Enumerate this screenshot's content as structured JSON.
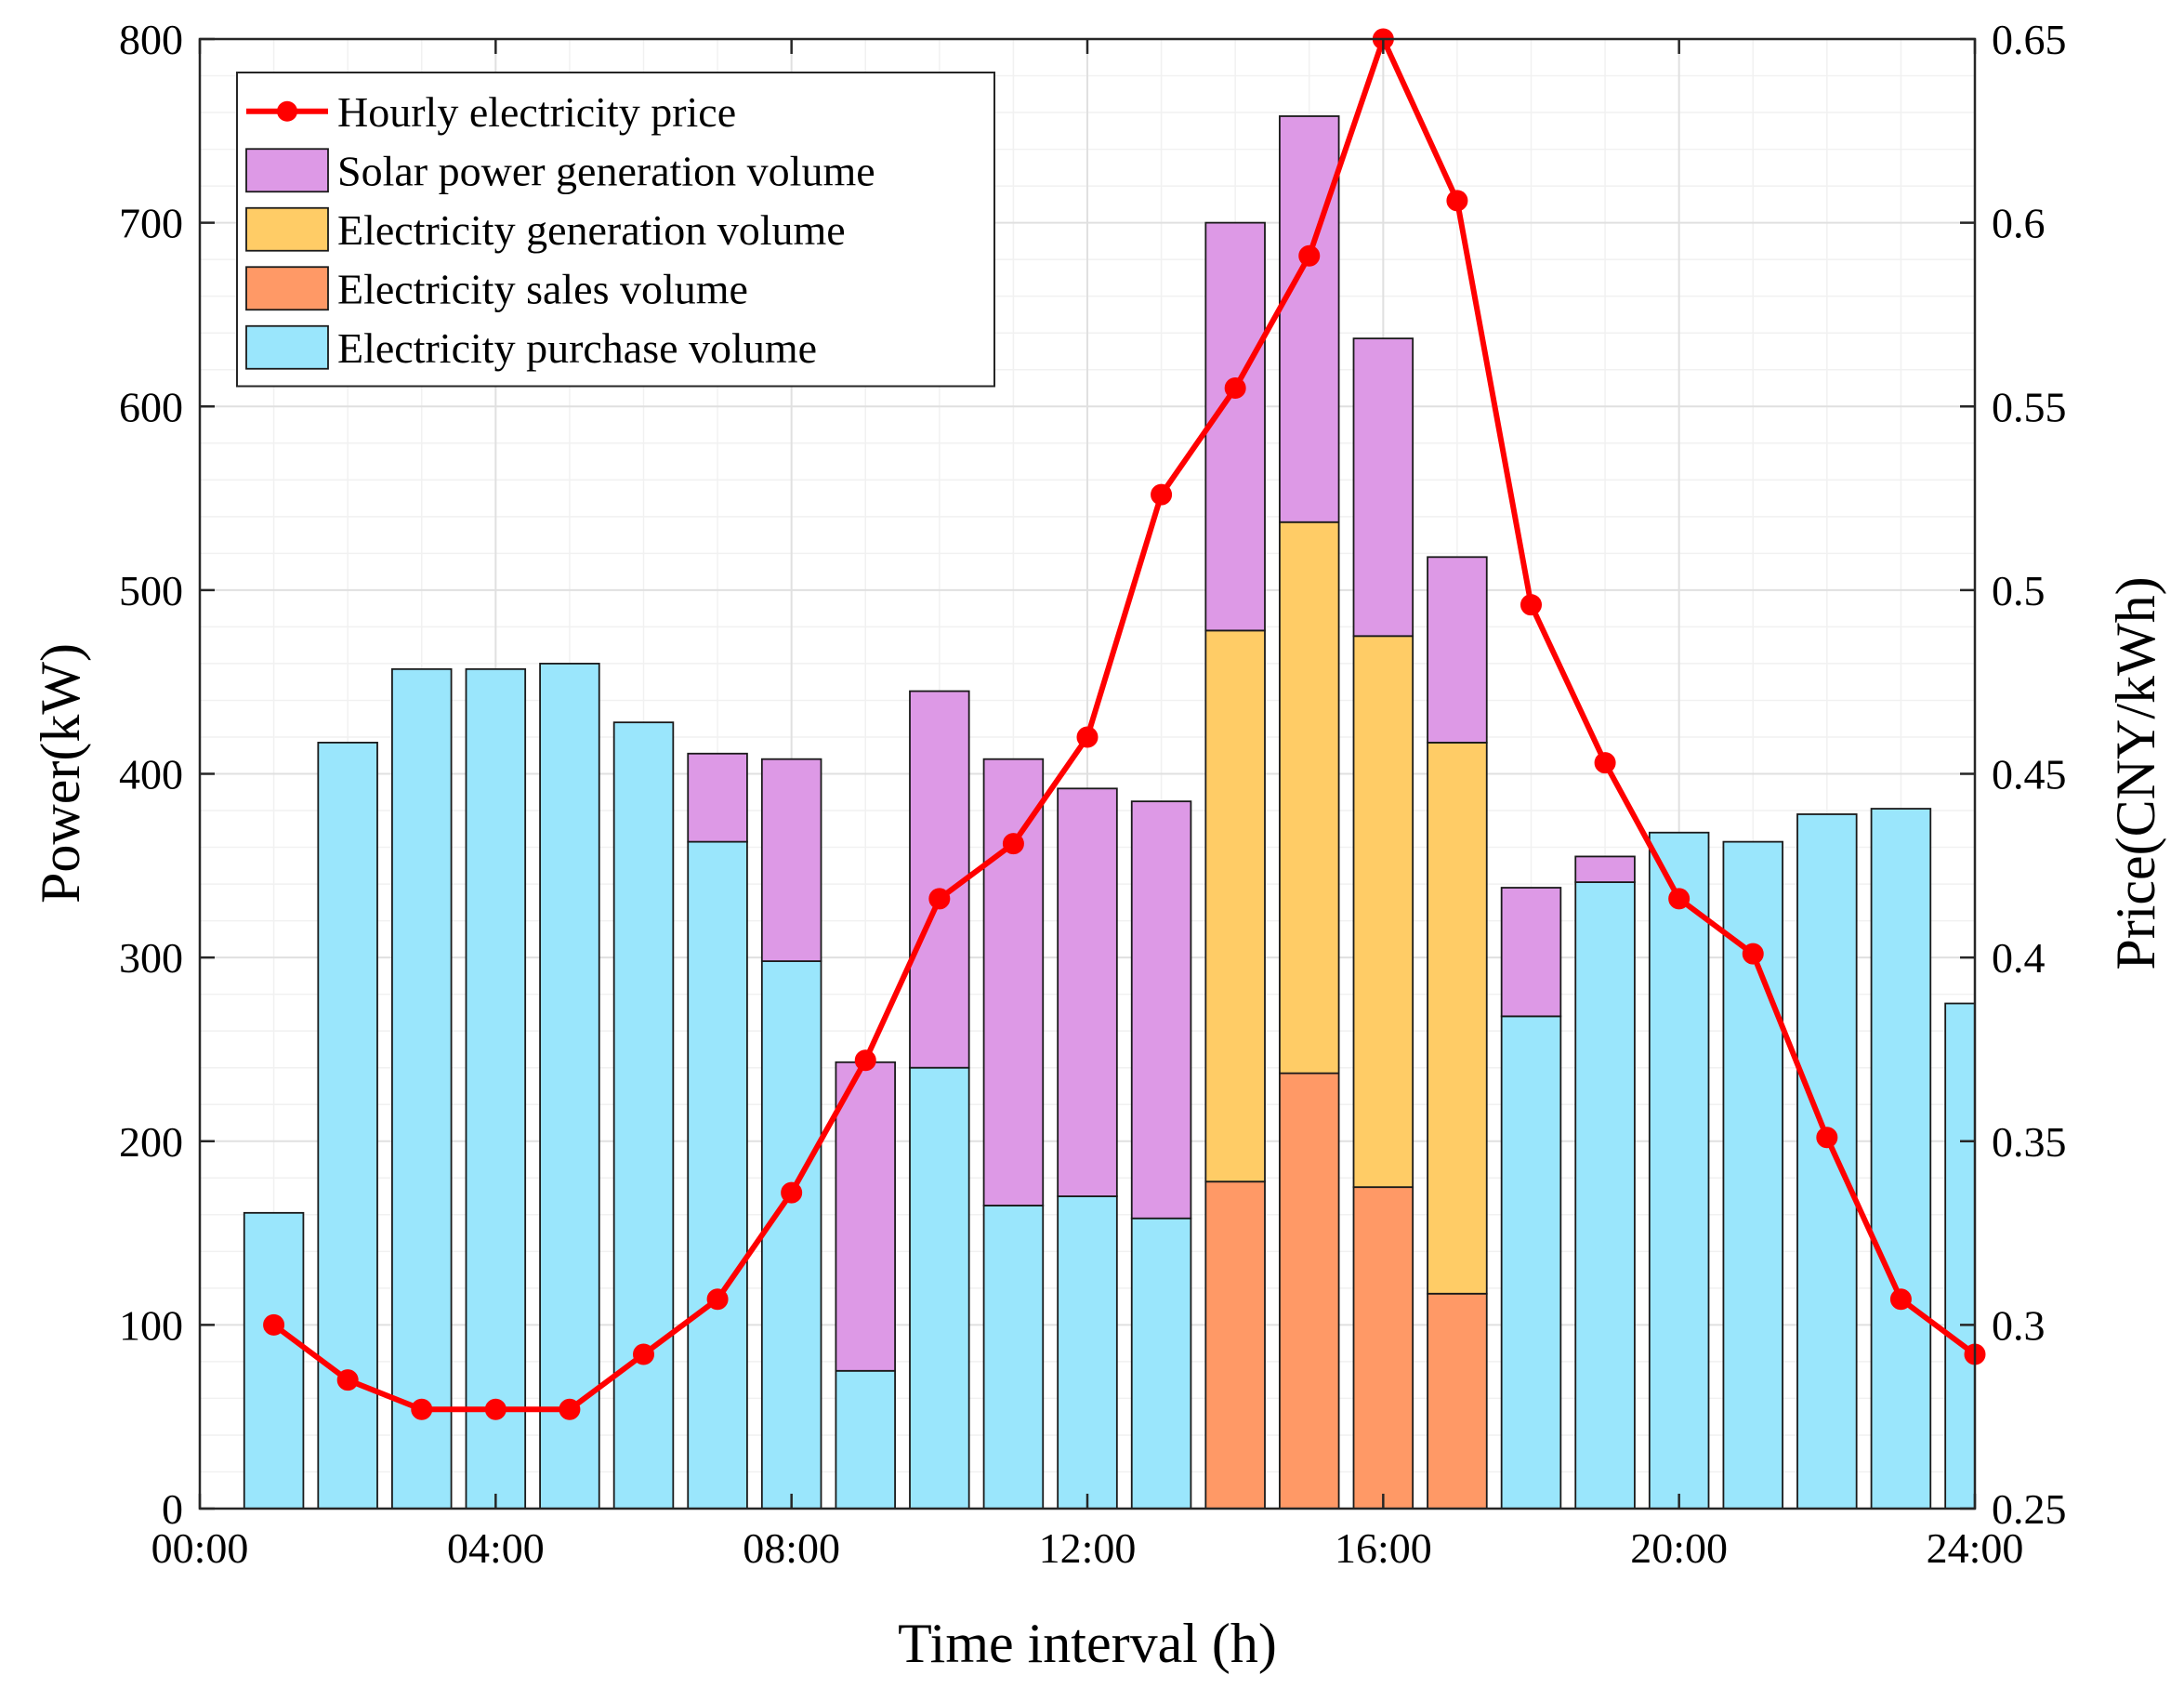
{
  "chart_data": {
    "type": "bar",
    "stacked": true,
    "xlabel": "Time interval (h)",
    "ylabel_left": "Power(kW)",
    "ylabel_right": "Price(CNY/kWh)",
    "x": [
      1,
      2,
      3,
      4,
      5,
      6,
      7,
      8,
      9,
      10,
      11,
      12,
      13,
      14,
      15,
      16,
      17,
      18,
      19,
      20,
      21,
      22,
      23,
      24
    ],
    "xlim": [
      0,
      24
    ],
    "xticks": [
      0,
      4,
      8,
      12,
      16,
      20,
      24
    ],
    "xtick_labels": [
      "00:00",
      "04:00",
      "08:00",
      "12:00",
      "16:00",
      "20:00",
      "24:00"
    ],
    "ylim_left": [
      0,
      800
    ],
    "yticks_left": [
      0,
      100,
      200,
      300,
      400,
      500,
      600,
      700,
      800
    ],
    "ytick_labels_left": [
      "0",
      "100",
      "200",
      "300",
      "400",
      "500",
      "600",
      "700",
      "800"
    ],
    "ylim_right": [
      0.25,
      0.65
    ],
    "yticks_right": [
      0.25,
      0.3,
      0.35,
      0.4,
      0.45,
      0.5,
      0.55,
      0.6,
      0.65
    ],
    "ytick_labels_right": [
      "0.25",
      "0.3",
      "0.35",
      "0.4",
      "0.45",
      "0.5",
      "0.55",
      "0.6",
      "0.65"
    ],
    "grid": true,
    "legend_position": "top-left",
    "series": [
      {
        "name": "Electricity purchase volume",
        "kind": "bar",
        "color": "#9AE6FC",
        "values": [
          161,
          417,
          457,
          457,
          460,
          428,
          363,
          298,
          75,
          240,
          165,
          170,
          158,
          0,
          0,
          0,
          0,
          268,
          341,
          368,
          363,
          378,
          381,
          275
        ]
      },
      {
        "name": "Electricity sales volume",
        "kind": "bar",
        "color": "#FF9966",
        "values": [
          0,
          0,
          0,
          0,
          0,
          0,
          0,
          0,
          0,
          0,
          0,
          0,
          0,
          178,
          237,
          175,
          117,
          0,
          0,
          0,
          0,
          0,
          0,
          0
        ]
      },
      {
        "name": "Electricity generation volume",
        "kind": "bar",
        "color": "#FFCC66",
        "values": [
          0,
          0,
          0,
          0,
          0,
          0,
          0,
          0,
          0,
          0,
          0,
          0,
          0,
          300,
          300,
          300,
          300,
          0,
          0,
          0,
          0,
          0,
          0,
          0
        ]
      },
      {
        "name": "Solar power generation volume",
        "kind": "bar",
        "color": "#DD99E6",
        "values": [
          0,
          0,
          0,
          0,
          0,
          0,
          48,
          110,
          168,
          205,
          243,
          222,
          227,
          222,
          221,
          162,
          101,
          70,
          14,
          0,
          0,
          0,
          0,
          0
        ]
      },
      {
        "name": "Hourly electricity price",
        "kind": "line",
        "axis": "right",
        "color": "#FF0000",
        "values": [
          0.3,
          0.285,
          0.277,
          0.277,
          0.277,
          0.292,
          0.307,
          0.336,
          0.372,
          0.416,
          0.431,
          0.46,
          0.526,
          0.555,
          0.591,
          0.65,
          0.606,
          0.496,
          0.453,
          0.416,
          0.401,
          0.351,
          0.307,
          0.292
        ]
      }
    ],
    "legend_order": [
      "Hourly electricity price",
      "Solar power generation volume",
      "Electricity generation volume",
      "Electricity sales volume",
      "Electricity purchase volume"
    ]
  }
}
